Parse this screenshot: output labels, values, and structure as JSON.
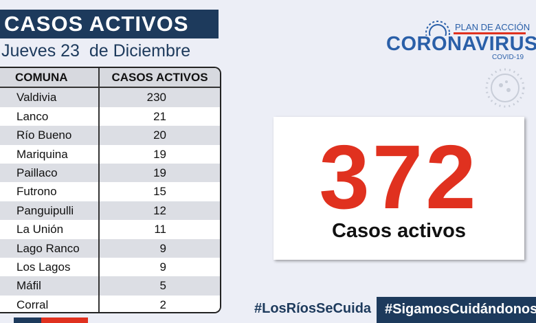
{
  "header": {
    "title": "CASOS ACTIVOS",
    "date": "Jueves 23  de Diciembre"
  },
  "logo": {
    "subtitle": "PLAN DE ACCIÓN",
    "title": "CORONAVIRUS",
    "caption": "COVID-19"
  },
  "table": {
    "columns": [
      "COMUNA",
      "CASOS ACTIVOS"
    ],
    "rows": [
      [
        "Valdivia",
        230
      ],
      [
        "Lanco",
        21
      ],
      [
        "Río Bueno",
        20
      ],
      [
        "Mariquina",
        19
      ],
      [
        "Paillaco",
        19
      ],
      [
        "Futrono",
        15
      ],
      [
        "Panguipulli",
        12
      ],
      [
        "La Unión",
        11
      ],
      [
        "Lago Ranco",
        9
      ],
      [
        "Los Lagos",
        9
      ],
      [
        "Máfil",
        5
      ],
      [
        "Corral",
        2
      ]
    ]
  },
  "summary": {
    "total": 372,
    "label": "Casos activos"
  },
  "footer": {
    "hashtags": [
      "#LosRíosSeCuida",
      "#SigamosCuidándonos"
    ]
  }
}
